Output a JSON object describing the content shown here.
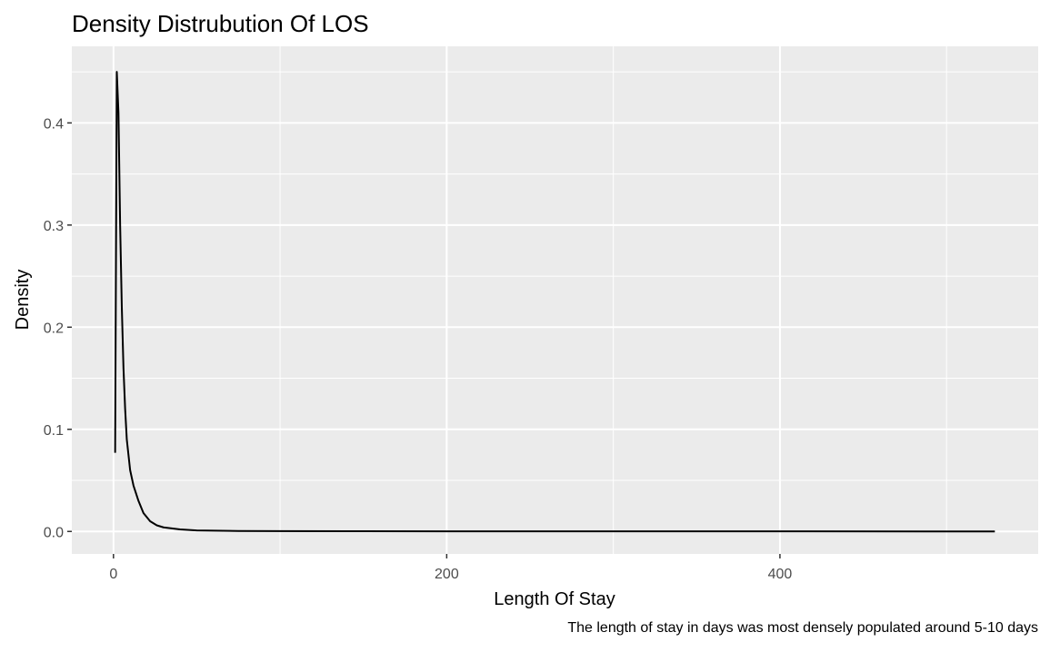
{
  "chart_data": {
    "type": "line",
    "title": "Density Distrubution Of LOS",
    "xlabel": "Length Of Stay",
    "ylabel": "Density",
    "caption": "The length of stay in days was most densely populated around 5-10 days",
    "xlim": [
      -25,
      555
    ],
    "ylim": [
      -0.022,
      0.475
    ],
    "x_ticks": [
      0,
      200,
      400
    ],
    "y_ticks": [
      0.0,
      0.1,
      0.2,
      0.3,
      0.4
    ],
    "x_tick_labels": [
      "0",
      "200",
      "400"
    ],
    "y_tick_labels": [
      "0.0",
      "0.1",
      "0.2",
      "0.3",
      "0.4"
    ],
    "grid": true,
    "legend": "none",
    "series": [
      {
        "x": [
          1,
          2,
          3,
          4,
          5,
          6,
          7,
          8,
          10,
          12,
          15,
          18,
          22,
          26,
          30,
          40,
          50,
          75,
          100,
          150,
          200,
          300,
          400,
          529
        ],
        "y": [
          0.077,
          0.45,
          0.41,
          0.3,
          0.22,
          0.16,
          0.12,
          0.09,
          0.06,
          0.045,
          0.03,
          0.018,
          0.01,
          0.006,
          0.004,
          0.002,
          0.001,
          0.0005,
          0.0003,
          0.0002,
          0.0001,
          0.0001,
          0.0001,
          0.0
        ]
      }
    ],
    "colors": {
      "panel_background": "#ebebeb",
      "grid_major": "#ffffff",
      "line": "#000000",
      "tick_label": "#4d4d4d"
    }
  }
}
